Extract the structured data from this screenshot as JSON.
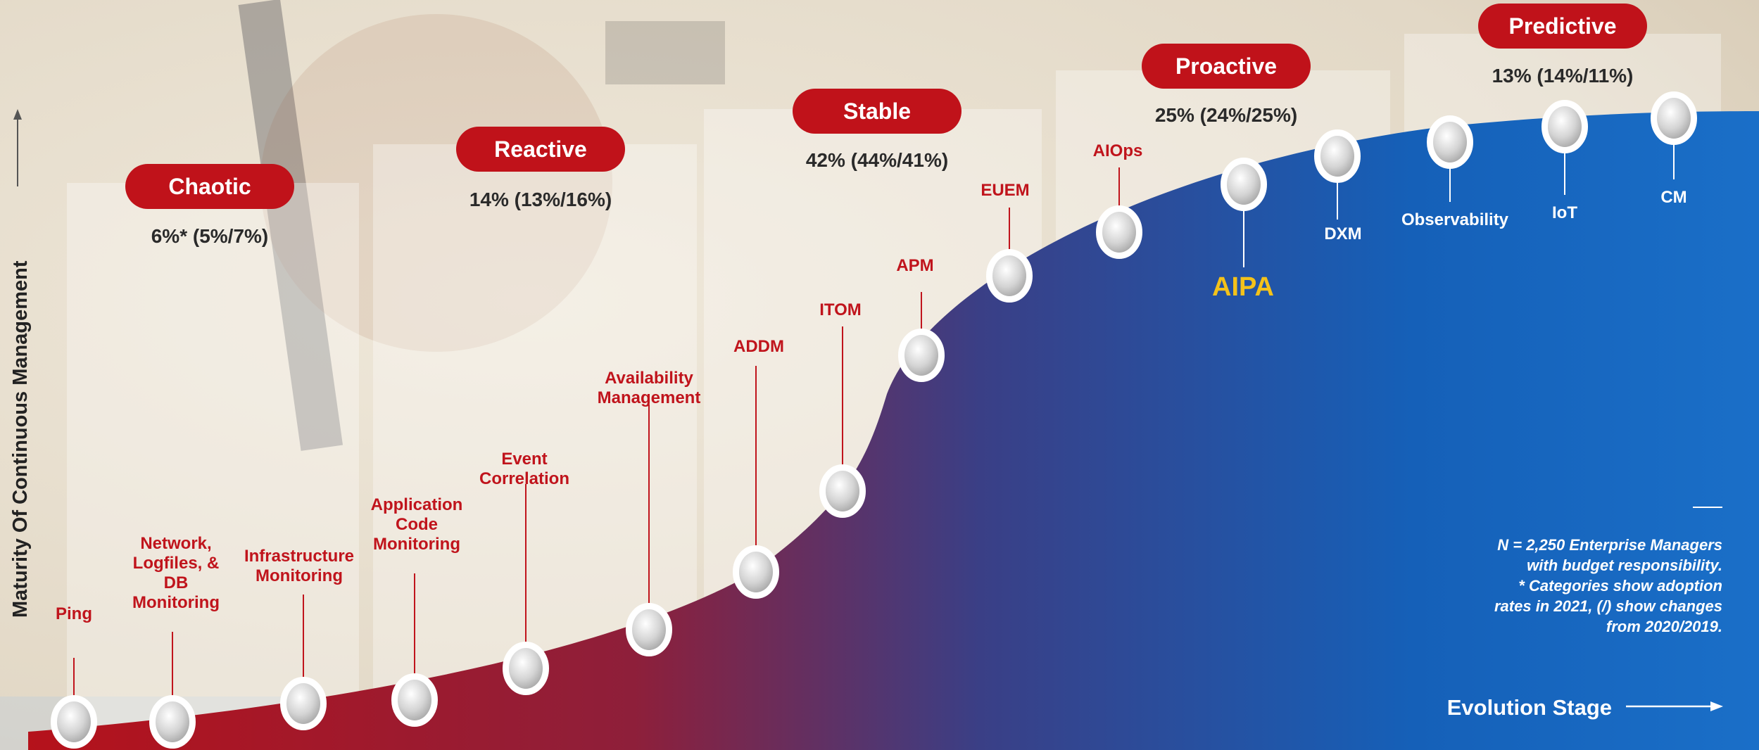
{
  "y_axis_label": "Maturity Of Continuous Management",
  "x_axis_label": "Evolution Stage",
  "highlight": "AIPA",
  "note_lines": [
    "N = 2,250 Enterprise Managers",
    "with budget responsibility.",
    "* Categories show adoption",
    "rates in 2021, (/) show changes",
    "from 2020/2019."
  ],
  "stages": [
    {
      "name": "Chaotic",
      "value": "6%* (5%/7%)"
    },
    {
      "name": "Reactive",
      "value": "14% (13%/16%)"
    },
    {
      "name": "Stable",
      "value": "42% (44%/41%)"
    },
    {
      "name": "Proactive",
      "value": "25% (24%/25%)"
    },
    {
      "name": "Predictive",
      "value": "13% (14%/11%)"
    }
  ],
  "steps": [
    {
      "id": "ping",
      "lines": [
        "Ping"
      ]
    },
    {
      "id": "network-logfiles-db",
      "lines": [
        "Network,",
        "Logfiles, &",
        "DB",
        "Monitoring"
      ]
    },
    {
      "id": "infrastructure-monitoring",
      "lines": [
        "Infrastructure",
        "Monitoring"
      ]
    },
    {
      "id": "application-code-monitoring",
      "lines": [
        "Application",
        "Code",
        "Monitoring"
      ]
    },
    {
      "id": "event-correlation",
      "lines": [
        "Event",
        "Correlation"
      ]
    },
    {
      "id": "availability-management",
      "lines": [
        "Availability",
        "Management"
      ]
    },
    {
      "id": "addm",
      "lines": [
        "ADDM"
      ]
    },
    {
      "id": "itom",
      "lines": [
        "ITOM"
      ]
    },
    {
      "id": "apm",
      "lines": [
        "APM"
      ]
    },
    {
      "id": "euem",
      "lines": [
        "EUEM"
      ]
    },
    {
      "id": "aiops",
      "lines": [
        "AIOps"
      ]
    },
    {
      "id": "aipa",
      "lines": []
    },
    {
      "id": "dxm",
      "lines": [
        "DXM"
      ]
    },
    {
      "id": "observability",
      "lines": [
        "Observability"
      ]
    },
    {
      "id": "iot",
      "lines": [
        "IoT"
      ]
    },
    {
      "id": "cm",
      "lines": [
        "CM"
      ]
    }
  ],
  "colors": {
    "curve_start": "#b5121b",
    "curve_end": "#1565c0",
    "pill": "#c0121a",
    "label_red": "#c0141c",
    "highlight": "#f4c21a"
  }
}
